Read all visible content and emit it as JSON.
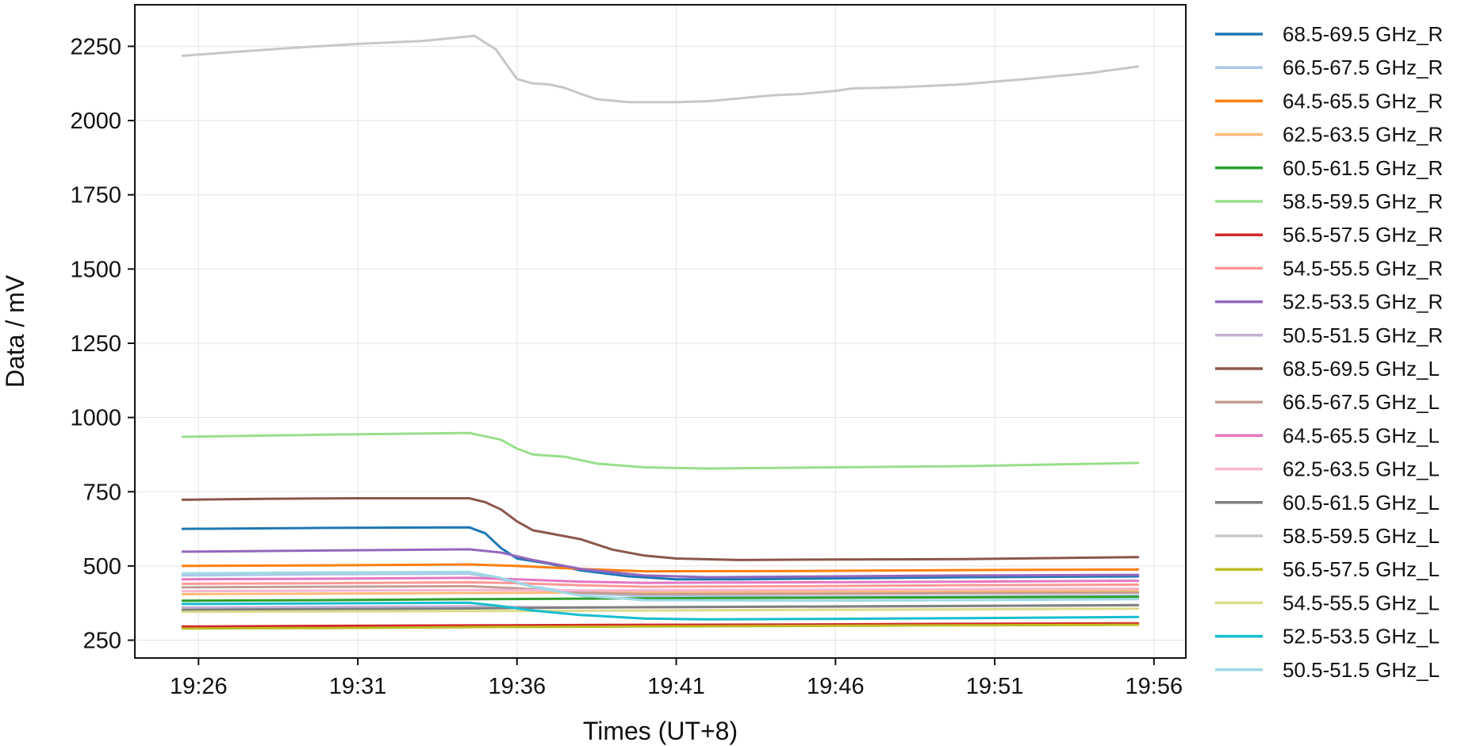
{
  "chart_data": {
    "type": "line",
    "title": "",
    "xlabel": "Times (UT+8)",
    "ylabel": "Data / mV",
    "xlim": [
      "19:24",
      "19:57"
    ],
    "ylim": [
      190,
      2390
    ],
    "x_ticks": [
      "19:26",
      "19:31",
      "19:36",
      "19:41",
      "19:46",
      "19:51",
      "19:56"
    ],
    "y_ticks": [
      250,
      500,
      750,
      1000,
      1250,
      1500,
      1750,
      2000,
      2250
    ],
    "grid": true,
    "legend_position": "outside-right",
    "series": [
      {
        "name": "68.5-69.5 GHz_R",
        "color": "#1f77b4",
        "points": [
          [
            "19:25:30",
            625
          ],
          [
            "19:30:00",
            628
          ],
          [
            "19:34:30",
            630
          ],
          [
            "19:35:00",
            610
          ],
          [
            "19:35:30",
            560
          ],
          [
            "19:36:00",
            525
          ],
          [
            "19:37:00",
            508
          ],
          [
            "19:38:00",
            485
          ],
          [
            "19:39:30",
            465
          ],
          [
            "19:41:00",
            455
          ],
          [
            "19:43:00",
            455
          ],
          [
            "19:46:00",
            458
          ],
          [
            "19:50:00",
            462
          ],
          [
            "19:55:30",
            465
          ]
        ]
      },
      {
        "name": "66.5-67.5 GHz_R",
        "color": "#aec7e8",
        "points": [
          [
            "19:25:30",
            468
          ],
          [
            "19:30:00",
            472
          ],
          [
            "19:34:30",
            474
          ],
          [
            "19:35:30",
            455
          ],
          [
            "19:36:30",
            430
          ],
          [
            "19:38:00",
            408
          ],
          [
            "19:40:00",
            398
          ],
          [
            "19:45:00",
            396
          ],
          [
            "19:50:00",
            398
          ],
          [
            "19:55:30",
            400
          ]
        ]
      },
      {
        "name": "64.5-65.5 GHz_R",
        "color": "#ff7f0e",
        "points": [
          [
            "19:25:30",
            500
          ],
          [
            "19:30:00",
            502
          ],
          [
            "19:34:30",
            505
          ],
          [
            "19:36:00",
            500
          ],
          [
            "19:38:00",
            490
          ],
          [
            "19:40:00",
            482
          ],
          [
            "19:45:00",
            483
          ],
          [
            "19:50:00",
            486
          ],
          [
            "19:55:30",
            488
          ]
        ]
      },
      {
        "name": "62.5-63.5 GHz_R",
        "color": "#ffbb78",
        "points": [
          [
            "19:25:30",
            405
          ],
          [
            "19:30:00",
            407
          ],
          [
            "19:34:30",
            409
          ],
          [
            "19:37:00",
            410
          ],
          [
            "19:40:00",
            412
          ],
          [
            "19:45:00",
            413
          ],
          [
            "19:50:00",
            415
          ],
          [
            "19:55:30",
            417
          ]
        ]
      },
      {
        "name": "60.5-61.5 GHz_R",
        "color": "#2ca02c",
        "points": [
          [
            "19:25:30",
            383
          ],
          [
            "19:30:00",
            385
          ],
          [
            "19:34:30",
            388
          ],
          [
            "19:38:00",
            390
          ],
          [
            "19:42:00",
            392
          ],
          [
            "19:48:00",
            394
          ],
          [
            "19:55:30",
            396
          ]
        ]
      },
      {
        "name": "58.5-59.5 GHz_R",
        "color": "#98df8a",
        "points": [
          [
            "19:25:30",
            935
          ],
          [
            "19:30:00",
            942
          ],
          [
            "19:34:30",
            948
          ],
          [
            "19:35:30",
            925
          ],
          [
            "19:36:00",
            895
          ],
          [
            "19:36:30",
            875
          ],
          [
            "19:37:30",
            868
          ],
          [
            "19:38:30",
            845
          ],
          [
            "19:40:00",
            832
          ],
          [
            "19:42:00",
            828
          ],
          [
            "19:46:00",
            832
          ],
          [
            "19:50:00",
            836
          ],
          [
            "19:55:30",
            847
          ]
        ]
      },
      {
        "name": "56.5-57.5 GHz_R",
        "color": "#d62728",
        "points": [
          [
            "19:25:30",
            296
          ],
          [
            "19:30:00",
            298
          ],
          [
            "19:35:00",
            300
          ],
          [
            "19:40:00",
            302
          ],
          [
            "19:45:00",
            303
          ],
          [
            "19:50:00",
            305
          ],
          [
            "19:55:30",
            307
          ]
        ]
      },
      {
        "name": "54.5-55.5 GHz_R",
        "color": "#ff9896",
        "points": [
          [
            "19:25:30",
            440
          ],
          [
            "19:30:00",
            442
          ],
          [
            "19:34:30",
            445
          ],
          [
            "19:36:00",
            442
          ],
          [
            "19:38:00",
            435
          ],
          [
            "19:40:00",
            430
          ],
          [
            "19:45:00",
            432
          ],
          [
            "19:50:00",
            435
          ],
          [
            "19:55:30",
            437
          ]
        ]
      },
      {
        "name": "52.5-53.5 GHz_R",
        "color": "#9467bd",
        "points": [
          [
            "19:25:30",
            548
          ],
          [
            "19:30:00",
            552
          ],
          [
            "19:34:30",
            556
          ],
          [
            "19:35:30",
            545
          ],
          [
            "19:36:30",
            520
          ],
          [
            "19:38:00",
            490
          ],
          [
            "19:40:00",
            468
          ],
          [
            "19:42:00",
            462
          ],
          [
            "19:46:00",
            465
          ],
          [
            "19:50:00",
            468
          ],
          [
            "19:55:30",
            470
          ]
        ]
      },
      {
        "name": "50.5-51.5 GHz_R",
        "color": "#c5b0d5",
        "points": [
          [
            "19:25:30",
            360
          ],
          [
            "19:30:00",
            362
          ],
          [
            "19:34:30",
            364
          ],
          [
            "19:36:00",
            362
          ],
          [
            "19:38:00",
            360
          ],
          [
            "19:42:00",
            362
          ],
          [
            "19:48:00",
            365
          ],
          [
            "19:55:30",
            368
          ]
        ]
      },
      {
        "name": "68.5-69.5 GHz_L",
        "color": "#8c564b",
        "points": [
          [
            "19:25:30",
            723
          ],
          [
            "19:28:00",
            726
          ],
          [
            "19:31:00",
            728
          ],
          [
            "19:34:30",
            728
          ],
          [
            "19:35:00",
            715
          ],
          [
            "19:35:30",
            690
          ],
          [
            "19:36:00",
            650
          ],
          [
            "19:36:30",
            620
          ],
          [
            "19:37:30",
            600
          ],
          [
            "19:38:00",
            590
          ],
          [
            "19:39:00",
            555
          ],
          [
            "19:40:00",
            535
          ],
          [
            "19:41:00",
            525
          ],
          [
            "19:43:00",
            520
          ],
          [
            "19:46:00",
            522
          ],
          [
            "19:50:00",
            523
          ],
          [
            "19:55:30",
            530
          ]
        ]
      },
      {
        "name": "66.5-67.5 GHz_L",
        "color": "#c49c94",
        "points": [
          [
            "19:25:30",
            428
          ],
          [
            "19:30:00",
            430
          ],
          [
            "19:34:30",
            432
          ],
          [
            "19:36:00",
            425
          ],
          [
            "19:38:00",
            410
          ],
          [
            "19:40:00",
            405
          ],
          [
            "19:45:00",
            406
          ],
          [
            "19:50:00",
            408
          ],
          [
            "19:55:30",
            410
          ]
        ]
      },
      {
        "name": "64.5-65.5 GHz_L",
        "color": "#e377c2",
        "points": [
          [
            "19:25:30",
            455
          ],
          [
            "19:30:00",
            457
          ],
          [
            "19:34:30",
            460
          ],
          [
            "19:36:00",
            455
          ],
          [
            "19:38:00",
            447
          ],
          [
            "19:40:00",
            443
          ],
          [
            "19:45:00",
            445
          ],
          [
            "19:50:00",
            447
          ],
          [
            "19:55:30",
            450
          ]
        ]
      },
      {
        "name": "62.5-63.5 GHz_L",
        "color": "#f7b6d2",
        "points": [
          [
            "19:25:30",
            415
          ],
          [
            "19:30:00",
            417
          ],
          [
            "19:34:30",
            419
          ],
          [
            "19:37:00",
            418
          ],
          [
            "19:40:00",
            418
          ],
          [
            "19:45:00",
            420
          ],
          [
            "19:50:00",
            422
          ],
          [
            "19:55:30",
            424
          ]
        ]
      },
      {
        "name": "60.5-61.5 GHz_L",
        "color": "#7f7f7f",
        "points": [
          [
            "19:25:30",
            352
          ],
          [
            "19:30:00",
            355
          ],
          [
            "19:34:30",
            357
          ],
          [
            "19:38:00",
            360
          ],
          [
            "19:42:00",
            362
          ],
          [
            "19:48:00",
            364
          ],
          [
            "19:55:30",
            368
          ]
        ]
      },
      {
        "name": "58.5-59.5 GHz_L",
        "color": "#c7c7c7",
        "points": [
          [
            "19:25:30",
            2218
          ],
          [
            "19:27:00",
            2230
          ],
          [
            "19:29:00",
            2245
          ],
          [
            "19:31:00",
            2258
          ],
          [
            "19:33:00",
            2268
          ],
          [
            "19:34:00",
            2278
          ],
          [
            "19:34:40",
            2285
          ],
          [
            "19:35:00",
            2262
          ],
          [
            "19:35:20",
            2240
          ],
          [
            "19:35:40",
            2190
          ],
          [
            "19:36:00",
            2140
          ],
          [
            "19:36:30",
            2125
          ],
          [
            "19:37:00",
            2122
          ],
          [
            "19:37:30",
            2110
          ],
          [
            "19:38:00",
            2090
          ],
          [
            "19:38:30",
            2072
          ],
          [
            "19:39:30",
            2062
          ],
          [
            "19:41:00",
            2062
          ],
          [
            "19:42:00",
            2065
          ],
          [
            "19:43:00",
            2075
          ],
          [
            "19:44:00",
            2085
          ],
          [
            "19:45:00",
            2090
          ],
          [
            "19:46:00",
            2100
          ],
          [
            "19:46:30",
            2108
          ],
          [
            "19:48:00",
            2112
          ],
          [
            "19:50:00",
            2122
          ],
          [
            "19:52:00",
            2140
          ],
          [
            "19:54:00",
            2160
          ],
          [
            "19:55:30",
            2182
          ]
        ]
      },
      {
        "name": "56.5-57.5 GHz_L",
        "color": "#bcbd22",
        "points": [
          [
            "19:25:30",
            289
          ],
          [
            "19:30:00",
            291
          ],
          [
            "19:35:00",
            294
          ],
          [
            "19:40:00",
            296
          ],
          [
            "19:45:00",
            298
          ],
          [
            "19:50:00",
            300
          ],
          [
            "19:55:30",
            302
          ]
        ]
      },
      {
        "name": "54.5-55.5 GHz_L",
        "color": "#dbdb8d",
        "points": [
          [
            "19:25:30",
            345
          ],
          [
            "19:30:00",
            347
          ],
          [
            "19:35:00",
            348
          ],
          [
            "19:40:00",
            350
          ],
          [
            "19:45:00",
            352
          ],
          [
            "19:50:00",
            354
          ],
          [
            "19:55:30",
            356
          ]
        ]
      },
      {
        "name": "52.5-53.5 GHz_L",
        "color": "#17becf",
        "points": [
          [
            "19:25:30",
            372
          ],
          [
            "19:30:00",
            374
          ],
          [
            "19:34:30",
            376
          ],
          [
            "19:35:30",
            365
          ],
          [
            "19:36:30",
            350
          ],
          [
            "19:38:00",
            335
          ],
          [
            "19:40:00",
            323
          ],
          [
            "19:42:00",
            320
          ],
          [
            "19:46:00",
            322
          ],
          [
            "19:50:00",
            324
          ],
          [
            "19:55:30",
            328
          ]
        ]
      },
      {
        "name": "50.5-51.5 GHz_L",
        "color": "#9edae5",
        "points": [
          [
            "19:25:30",
            475
          ],
          [
            "19:30:00",
            478
          ],
          [
            "19:34:30",
            480
          ],
          [
            "19:35:30",
            460
          ],
          [
            "19:36:30",
            430
          ],
          [
            "19:38:00",
            400
          ],
          [
            "19:40:00",
            385
          ],
          [
            "19:45:00",
            383
          ],
          [
            "19:50:00",
            385
          ],
          [
            "19:55:30",
            388
          ]
        ]
      }
    ]
  }
}
